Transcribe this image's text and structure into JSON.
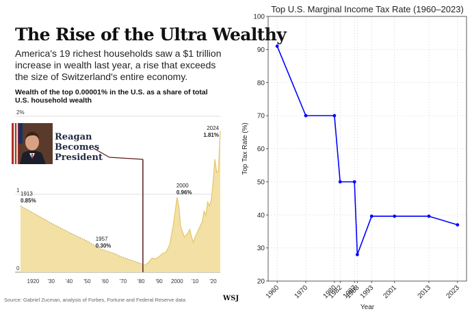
{
  "wsj_panel": {
    "headline": "The Rise of the Ultra Wealthy",
    "subtitle": "America's 19 richest households saw a $1 trillion increase in wealth last year, a rise that exceeds the size of Switzerland's entire economy.",
    "chart_label": "Wealth of the top 0.00001% in the U.S. as a share of total U.S. household wealth",
    "source": "Source: Gabriel Zucman, analysis of Forbes, Fortune and Federal Reserve data",
    "logo": "WSJ",
    "callout": "Reagan Becomes President",
    "portrait_icon": "reagan-portrait-icon"
  },
  "chart_data": [
    {
      "type": "area",
      "title": "Wealth of the top 0.00001% in the U.S. as a share of total U.S. household wealth",
      "y_tick_labels": [
        "2%",
        "1",
        "0"
      ],
      "x_tick_labels": [
        "1920",
        "'30",
        "'40",
        "'50",
        "'60",
        "'70",
        "'80",
        "'90",
        "2000",
        "'10",
        "'20"
      ],
      "x_ticks": [
        1920,
        1930,
        1940,
        1950,
        1960,
        1970,
        1980,
        1990,
        2000,
        2010,
        2020
      ],
      "ylim": [
        0,
        2
      ],
      "xlim": [
        1913,
        2024
      ],
      "annotations": [
        {
          "year_label": "1913",
          "value_label": "0.85%",
          "x": 1913,
          "y": 0.85
        },
        {
          "year_label": "1957",
          "value_label": "0.30%",
          "x": 1957,
          "y": 0.3
        },
        {
          "year_label": "2000",
          "value_label": "0.96%",
          "x": 2000,
          "y": 0.96
        },
        {
          "year_label": "2024",
          "value_label": "1.81%",
          "x": 2024,
          "y": 1.81
        }
      ],
      "reagan_year": 1981,
      "series": [
        {
          "name": "Top 0.00001% wealth share",
          "x": [
            1913,
            1920,
            1930,
            1940,
            1950,
            1957,
            1965,
            1970,
            1975,
            1980,
            1982,
            1984,
            1986,
            1988,
            1990,
            1992,
            1994,
            1996,
            1998,
            2000,
            2001,
            2002,
            2003,
            2004,
            2006,
            2007,
            2008,
            2009,
            2010,
            2012,
            2014,
            2015,
            2016,
            2017,
            2018,
            2019,
            2020,
            2021,
            2022,
            2023,
            2024
          ],
          "values": [
            0.85,
            0.76,
            0.63,
            0.51,
            0.4,
            0.3,
            0.24,
            0.19,
            0.15,
            0.11,
            0.09,
            0.12,
            0.18,
            0.17,
            0.2,
            0.24,
            0.26,
            0.36,
            0.62,
            0.96,
            0.84,
            0.58,
            0.52,
            0.45,
            0.5,
            0.55,
            0.46,
            0.38,
            0.45,
            0.55,
            0.65,
            0.78,
            0.73,
            0.9,
            0.85,
            0.92,
            1.15,
            1.45,
            1.28,
            1.3,
            1.81
          ]
        }
      ]
    },
    {
      "type": "line",
      "title": "Top U.S. Marginal Income Tax Rate (1960–2023)",
      "xlabel": "Year",
      "ylabel": "Top Tax Rate (%)",
      "ylim": [
        20,
        100
      ],
      "y_ticks": [
        20,
        30,
        40,
        50,
        60,
        70,
        80,
        90,
        100
      ],
      "x_ticks": [
        1960,
        1970,
        1980,
        1982,
        1987,
        1988,
        1993,
        2001,
        2013,
        2023
      ],
      "x": [
        1960,
        1970,
        1980,
        1982,
        1987,
        1988,
        1993,
        2001,
        2013,
        2023
      ],
      "values": [
        91,
        70,
        70,
        50,
        50,
        28,
        39.6,
        39.6,
        39.6,
        37
      ],
      "color": "#0000ff",
      "grid": true
    }
  ]
}
